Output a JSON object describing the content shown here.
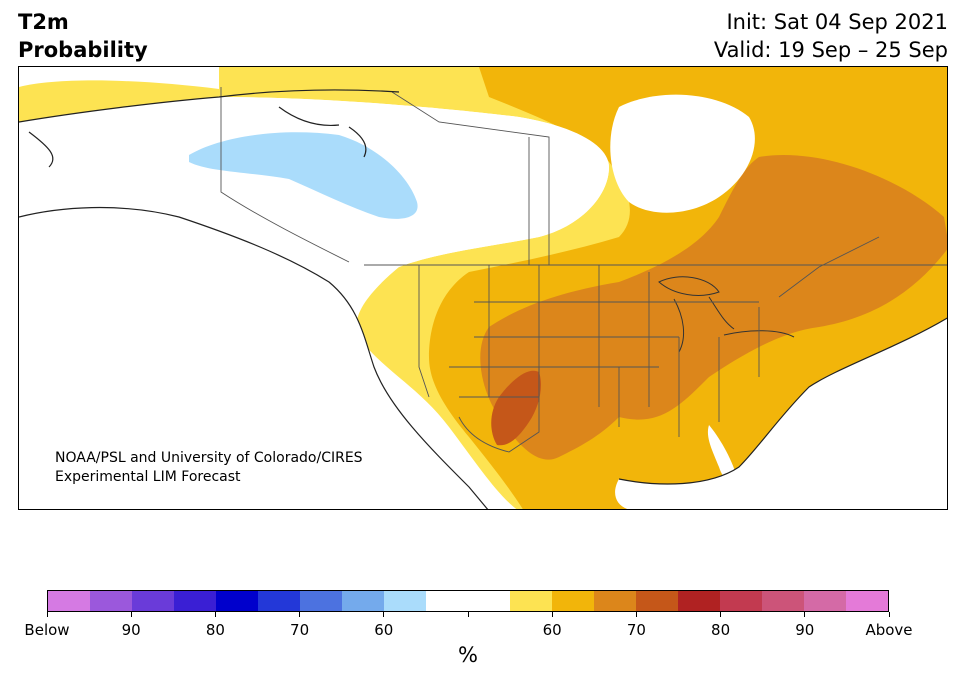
{
  "header": {
    "title_line1": "T2m",
    "title_line2": "Probability",
    "init_text": "Init: Sat 04 Sep 2021",
    "valid_text": "Valid: 19 Sep – 25 Sep"
  },
  "map": {
    "credit_line1": "NOAA/PSL and University of Colorado/CIRES",
    "credit_line2": "Experimental LIM Forecast"
  },
  "colorbar": {
    "colors": [
      "#d57ae3",
      "#9b58dc",
      "#6a3bd9",
      "#3a1fd4",
      "#0000cc",
      "#2338d8",
      "#4c72e0",
      "#74aaec",
      "#aadcfb",
      "#ffffff",
      "#ffffff",
      "#fde352",
      "#f2b50a",
      "#dc861b",
      "#c55719",
      "#b02222",
      "#c23a50",
      "#cc5479",
      "#d46aa6",
      "#e47ad8"
    ],
    "tick_labels": [
      "Below",
      "90",
      "80",
      "70",
      "60",
      "",
      "60",
      "70",
      "80",
      "90",
      "Above"
    ],
    "unit": "%"
  },
  "palette": {
    "white": "#ffffff",
    "light_blue": "#aadcfb",
    "yellow": "#fde352",
    "gold": "#f2b50a",
    "orange": "#dc861b",
    "dark_orange": "#c55719"
  }
}
